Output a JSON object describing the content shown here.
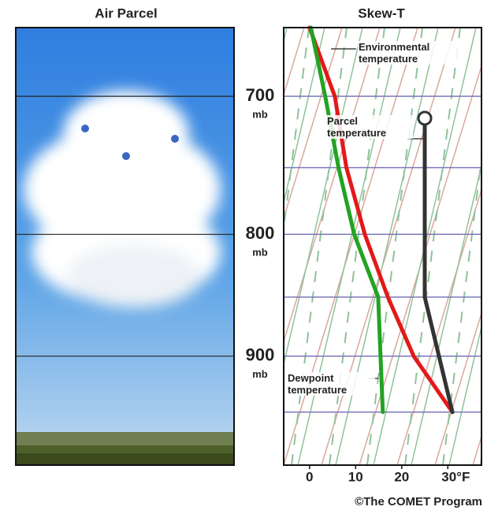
{
  "chart_data": {
    "type": "line",
    "titles": [
      "Air Parcel",
      "Skew-T"
    ],
    "credit": "©The COMET Program",
    "y_unit": "mb",
    "ylim": [
      1000,
      655
    ],
    "log_y": true,
    "yticks": [
      700,
      800,
      900
    ],
    "minor_yticks": [
      750,
      850,
      950
    ],
    "xlim": [
      -5.6,
      37.3
    ],
    "xticks": [
      0,
      10,
      20,
      {
        "value": 30,
        "label": "30°F"
      }
    ],
    "series": [
      {
        "name": "Environmental temperature",
        "color": "#e21a1a",
        "x": [
          0,
          5.5,
          8,
          12,
          17,
          22.6,
          31
        ],
        "values": [
          655,
          700,
          750,
          800,
          850,
          900,
          950
        ]
      },
      {
        "name": "Dewpoint temperature",
        "color": "#22a322",
        "x": [
          0.3,
          3.4,
          6.3,
          9.7,
          14.9,
          15.4,
          15.9
        ],
        "values": [
          655,
          700,
          750,
          800,
          850,
          900,
          950
        ]
      },
      {
        "name": "Parcel temperature",
        "color": "#333333",
        "x": [
          31,
          25,
          25
        ],
        "values": [
          950,
          850,
          715
        ]
      }
    ]
  }
}
